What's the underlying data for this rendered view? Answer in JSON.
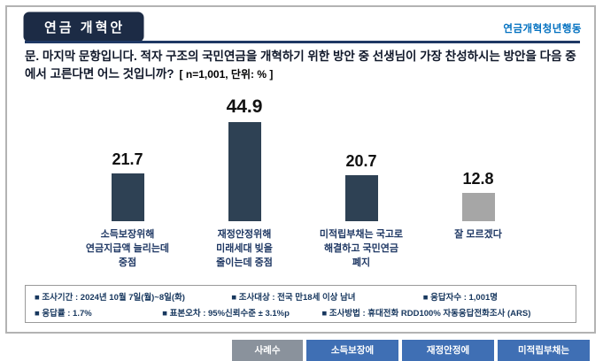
{
  "header": {
    "badge": "연금 개혁안",
    "org": "연금개혁청년행동"
  },
  "question": {
    "text": "문. 마지막 문항입니다. 적자 구조의 국민연금을 개혁하기 위한 방안 중 선생님이 가장 찬성하시는 방안을 다음 중에서 고른다면 어느 것입니까?",
    "note": "[ n=1,001, 단위: % ]"
  },
  "chart_data": {
    "type": "bar",
    "title": "문. 마지막 문항입니다. 적자 구조의 국민연금을 개혁하기 위한 방안 중 선생님이 가장 찬성하시는 방안을 다음 중에서 고른다면 어느 것입니까?",
    "unit": "%",
    "n": 1001,
    "categories": [
      "소득보장위해\n연금지급액 늘리는데\n중점",
      "재정안정위해\n미래세대 빚을\n줄이는데 중점",
      "미적립부채는 국고로\n해결하고 국민연금\n폐지",
      "잘 모르겠다"
    ],
    "values": [
      21.7,
      44.9,
      20.7,
      12.8
    ],
    "bar_colors": [
      "#2e4154",
      "#2e4154",
      "#2e4154",
      "#a6a6a6"
    ],
    "ylim": [
      0,
      50
    ],
    "grid": false,
    "legend": "none",
    "data_labels": true
  },
  "survey_info": {
    "rows": [
      [
        "■ 조사기간 : 2024년 10월 7일(월)~8일(화)",
        "■ 조사대상 : 전국 만18세 이상 남녀",
        "■ 응답자수 : 1,001명"
      ],
      [
        "■ 응답률 : 1.7%",
        "■ 표본오차 : 95%신뢰수준 ± 3.1%p",
        "■ 조사방법 : 휴대전화 RDD100% 자동응답전화조사 (ARS)"
      ]
    ]
  },
  "table_peek": {
    "headers": [
      "사례수",
      "소득보장에",
      "재정안정에",
      "미적립부채는"
    ],
    "first_col_bg": "#8a929c",
    "col_bg": "#3f6fb4"
  },
  "colors": {
    "bar_navy": "#2e4154",
    "bar_gray": "#a6a6a6",
    "badge_bg": "#1c2b45",
    "org_blue": "#0070c0",
    "rule_navy": "#1f3864",
    "label_navy": "#1f3864"
  }
}
